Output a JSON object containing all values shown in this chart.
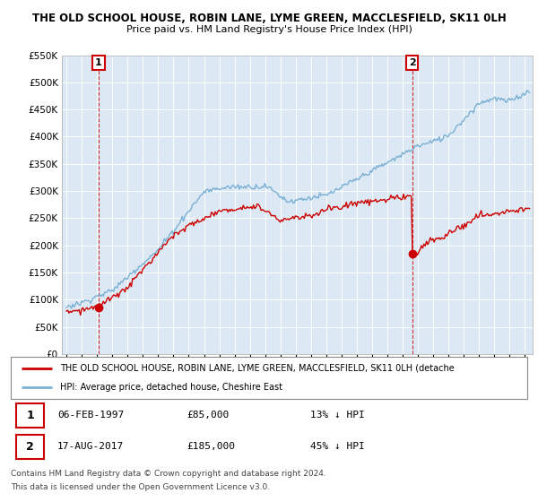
{
  "title": "THE OLD SCHOOL HOUSE, ROBIN LANE, LYME GREEN, MACCLESFIELD, SK11 0LH",
  "subtitle": "Price paid vs. HM Land Registry's House Price Index (HPI)",
  "legend_line1": "THE OLD SCHOOL HOUSE, ROBIN LANE, LYME GREEN, MACCLESFIELD, SK11 0LH (detache",
  "legend_line2": "HPI: Average price, detached house, Cheshire East",
  "transaction1_date": "06-FEB-1997",
  "transaction1_price": "£85,000",
  "transaction1_hpi": "13% ↓ HPI",
  "transaction2_date": "17-AUG-2017",
  "transaction2_price": "£185,000",
  "transaction2_hpi": "45% ↓ HPI",
  "footer1": "Contains HM Land Registry data © Crown copyright and database right 2024.",
  "footer2": "This data is licensed under the Open Government Licence v3.0.",
  "ylim": [
    0,
    550000
  ],
  "yticks": [
    0,
    50000,
    100000,
    150000,
    200000,
    250000,
    300000,
    350000,
    400000,
    450000,
    500000,
    550000
  ],
  "red_color": "#cc0000",
  "blue_color": "#7ab0d4",
  "bg_color": "#dce9f5",
  "marker1_x": 1997.1,
  "marker1_y": 85000,
  "marker2_x": 2017.62,
  "marker2_y": 185000,
  "vline1_x": 1997.1,
  "vline2_x": 2017.62,
  "xmin": 1995,
  "xmax": 2025
}
